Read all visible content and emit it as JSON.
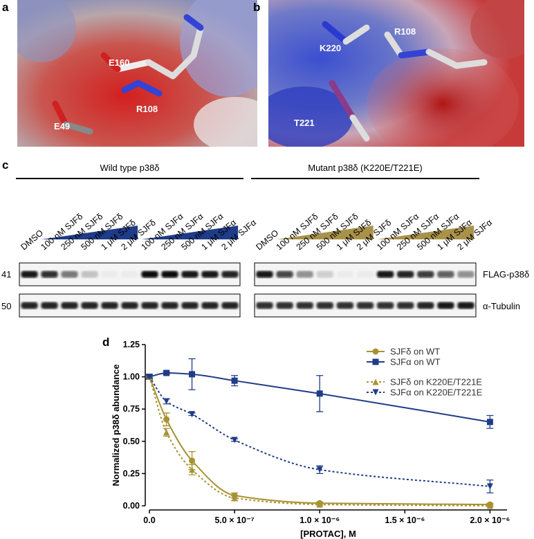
{
  "panel_labels": [
    "a",
    "b",
    "c",
    "d"
  ],
  "structure_a": {
    "residues": [
      "E160",
      "R108",
      "E49"
    ]
  },
  "structure_b": {
    "residues": [
      "R108",
      "K220",
      "T221"
    ]
  },
  "blot": {
    "markers": [
      "41",
      "50"
    ],
    "rows": [
      "FLAG-p38δ",
      "α-Tubulin"
    ],
    "groups": [
      {
        "title": "Wild type p38δ",
        "lanes": [
          "DMSO",
          "100 nM SJFδ",
          "250 nM SJFδ",
          "500 nM SJFδ",
          "1 μM SJFδ",
          "2 μM SJFδ",
          "100 nM SJFα",
          "250 nM SJFα",
          "500 nM SJFα",
          "1 μM SJFα",
          "2 μM SJFα"
        ],
        "intensity": [
          [
            0.9,
            0.8,
            0.5,
            0.2,
            0.03,
            0.03,
            0.95,
            0.95,
            0.9,
            0.9,
            0.85
          ],
          [
            0.85,
            0.85,
            0.85,
            0.85,
            0.85,
            0.85,
            0.85,
            0.85,
            0.85,
            0.85,
            0.85
          ]
        ]
      },
      {
        "title": "Mutant p38δ (K220E/T221E)",
        "lanes": [
          "DMSO",
          "100 nM SJFδ",
          "250 nM SJFδ",
          "500 nM SJFδ",
          "1 μM SJFδ",
          "2 μM SJFδ",
          "100 nM SJFα",
          "250 nM SJFα",
          "500 nM SJFα",
          "1 μM SJFα",
          "2 μM SJFα"
        ],
        "intensity": [
          [
            0.9,
            0.7,
            0.4,
            0.15,
            0.03,
            0.03,
            0.9,
            0.85,
            0.75,
            0.6,
            0.4
          ],
          [
            0.8,
            0.8,
            0.8,
            0.8,
            0.8,
            0.8,
            0.8,
            0.8,
            0.85,
            0.9,
            0.9
          ]
        ]
      }
    ]
  },
  "chart_data": {
    "type": "line",
    "xlabel": "[PROTAC], M",
    "ylabel": "Normalized p38δ abundance",
    "x": [
      0,
      1e-07,
      2.5e-07,
      5e-07,
      1e-06,
      2e-06
    ],
    "xlim": [
      0,
      2.1e-06
    ],
    "ylim": [
      0,
      1.25
    ],
    "xticks": [
      {
        "value": 0,
        "label": "0.0"
      },
      {
        "value": 5e-07,
        "label": "5.0 × 10⁻⁷"
      },
      {
        "value": 1e-06,
        "label": "1.0 × 10⁻⁶"
      },
      {
        "value": 1.5e-06,
        "label": "1.5 × 10⁻⁶"
      },
      {
        "value": 2e-06,
        "label": "2.0 × 10⁻⁶"
      }
    ],
    "yticks": [
      {
        "value": 0,
        "label": "0.00"
      },
      {
        "value": 0.25,
        "label": "0.25"
      },
      {
        "value": 0.5,
        "label": "0.50"
      },
      {
        "value": 0.75,
        "label": "0.75"
      },
      {
        "value": 1,
        "label": "1.00"
      },
      {
        "value": 1.25,
        "label": "1.25"
      }
    ],
    "legend": "upper right",
    "series": [
      {
        "name": "SJFδ on WT",
        "color": "#a89233",
        "marker": "circle",
        "line_style": "solid",
        "values": [
          1.0,
          0.67,
          0.35,
          0.08,
          0.02,
          0.01
        ],
        "errors": [
          0.02,
          0.05,
          0.07,
          0.02,
          0.01,
          0.01
        ]
      },
      {
        "name": "SJFα on WT",
        "color": "#1f3c88",
        "marker": "square",
        "line_style": "solid",
        "values": [
          1.0,
          1.03,
          1.02,
          0.97,
          0.87,
          0.65
        ],
        "errors": [
          0.02,
          0.01,
          0.12,
          0.04,
          0.14,
          0.05
        ]
      },
      {
        "name": "SJFδ on K220E/T221E",
        "color": "#a89233",
        "marker": "triangle",
        "line_style": "dotted",
        "values": [
          1.0,
          0.57,
          0.28,
          0.06,
          0.01,
          0.0
        ],
        "errors": [
          0.01,
          0.03,
          0.04,
          0.02,
          0.01,
          0.01
        ]
      },
      {
        "name": "SJFα on K220E/T221E",
        "color": "#1f3c88",
        "marker": "triangle-down",
        "line_style": "dotted",
        "values": [
          1.0,
          0.81,
          0.71,
          0.51,
          0.28,
          0.15
        ],
        "errors": [
          0.01,
          0.02,
          0.01,
          0.01,
          0.03,
          0.05
        ]
      }
    ]
  }
}
